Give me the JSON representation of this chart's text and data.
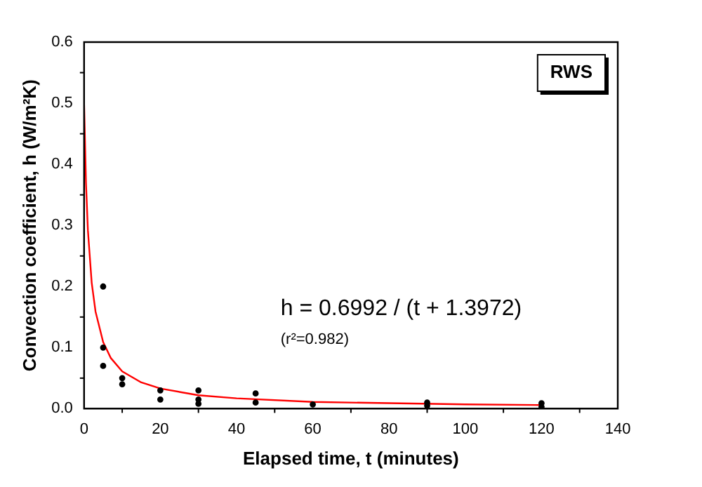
{
  "chart_data": {
    "type": "scatter",
    "xlabel": "Elapsed time, t (minutes)",
    "ylabel": "Convection coefficient, h (W/m²K)",
    "xlim": [
      0,
      140
    ],
    "xticks": [
      0,
      20,
      40,
      60,
      80,
      100,
      120,
      140
    ],
    "ylim": [
      0,
      0.6
    ],
    "yticks": [
      {
        "value": 0,
        "label": "0.0"
      },
      0.1,
      0.2,
      0.3,
      0.4,
      0.5,
      0.6
    ],
    "grid": false,
    "legend": false,
    "marker": "circle",
    "series": [
      {
        "type": "scatter",
        "color": "#000000",
        "x": [
          5,
          5,
          5,
          10,
          10,
          20,
          20,
          30,
          30,
          30,
          45,
          45,
          60,
          90,
          90,
          120,
          120
        ],
        "values": [
          0.2,
          0.1,
          0.07,
          0.05,
          0.04,
          0.03,
          0.015,
          0.03,
          0.015,
          0.008,
          0.025,
          0.01,
          0.007,
          0.01,
          0.005,
          0.009,
          0.003
        ]
      },
      {
        "type": "line",
        "color": "#ff0000",
        "marker": "none",
        "line_style": "solid",
        "x": [
          0,
          0.5,
          1,
          2,
          3,
          5,
          7,
          10,
          15,
          20,
          30,
          40,
          60,
          80,
          100,
          120
        ],
        "values": [
          0.5,
          0.369,
          0.292,
          0.206,
          0.159,
          0.109,
          0.083,
          0.061,
          0.043,
          0.033,
          0.022,
          0.017,
          0.011,
          0.009,
          0.007,
          0.006
        ]
      }
    ],
    "annotations": [
      "RWS",
      "h = 0.6992 / (t + 1.3972)",
      "(r²=0.982)"
    ]
  }
}
